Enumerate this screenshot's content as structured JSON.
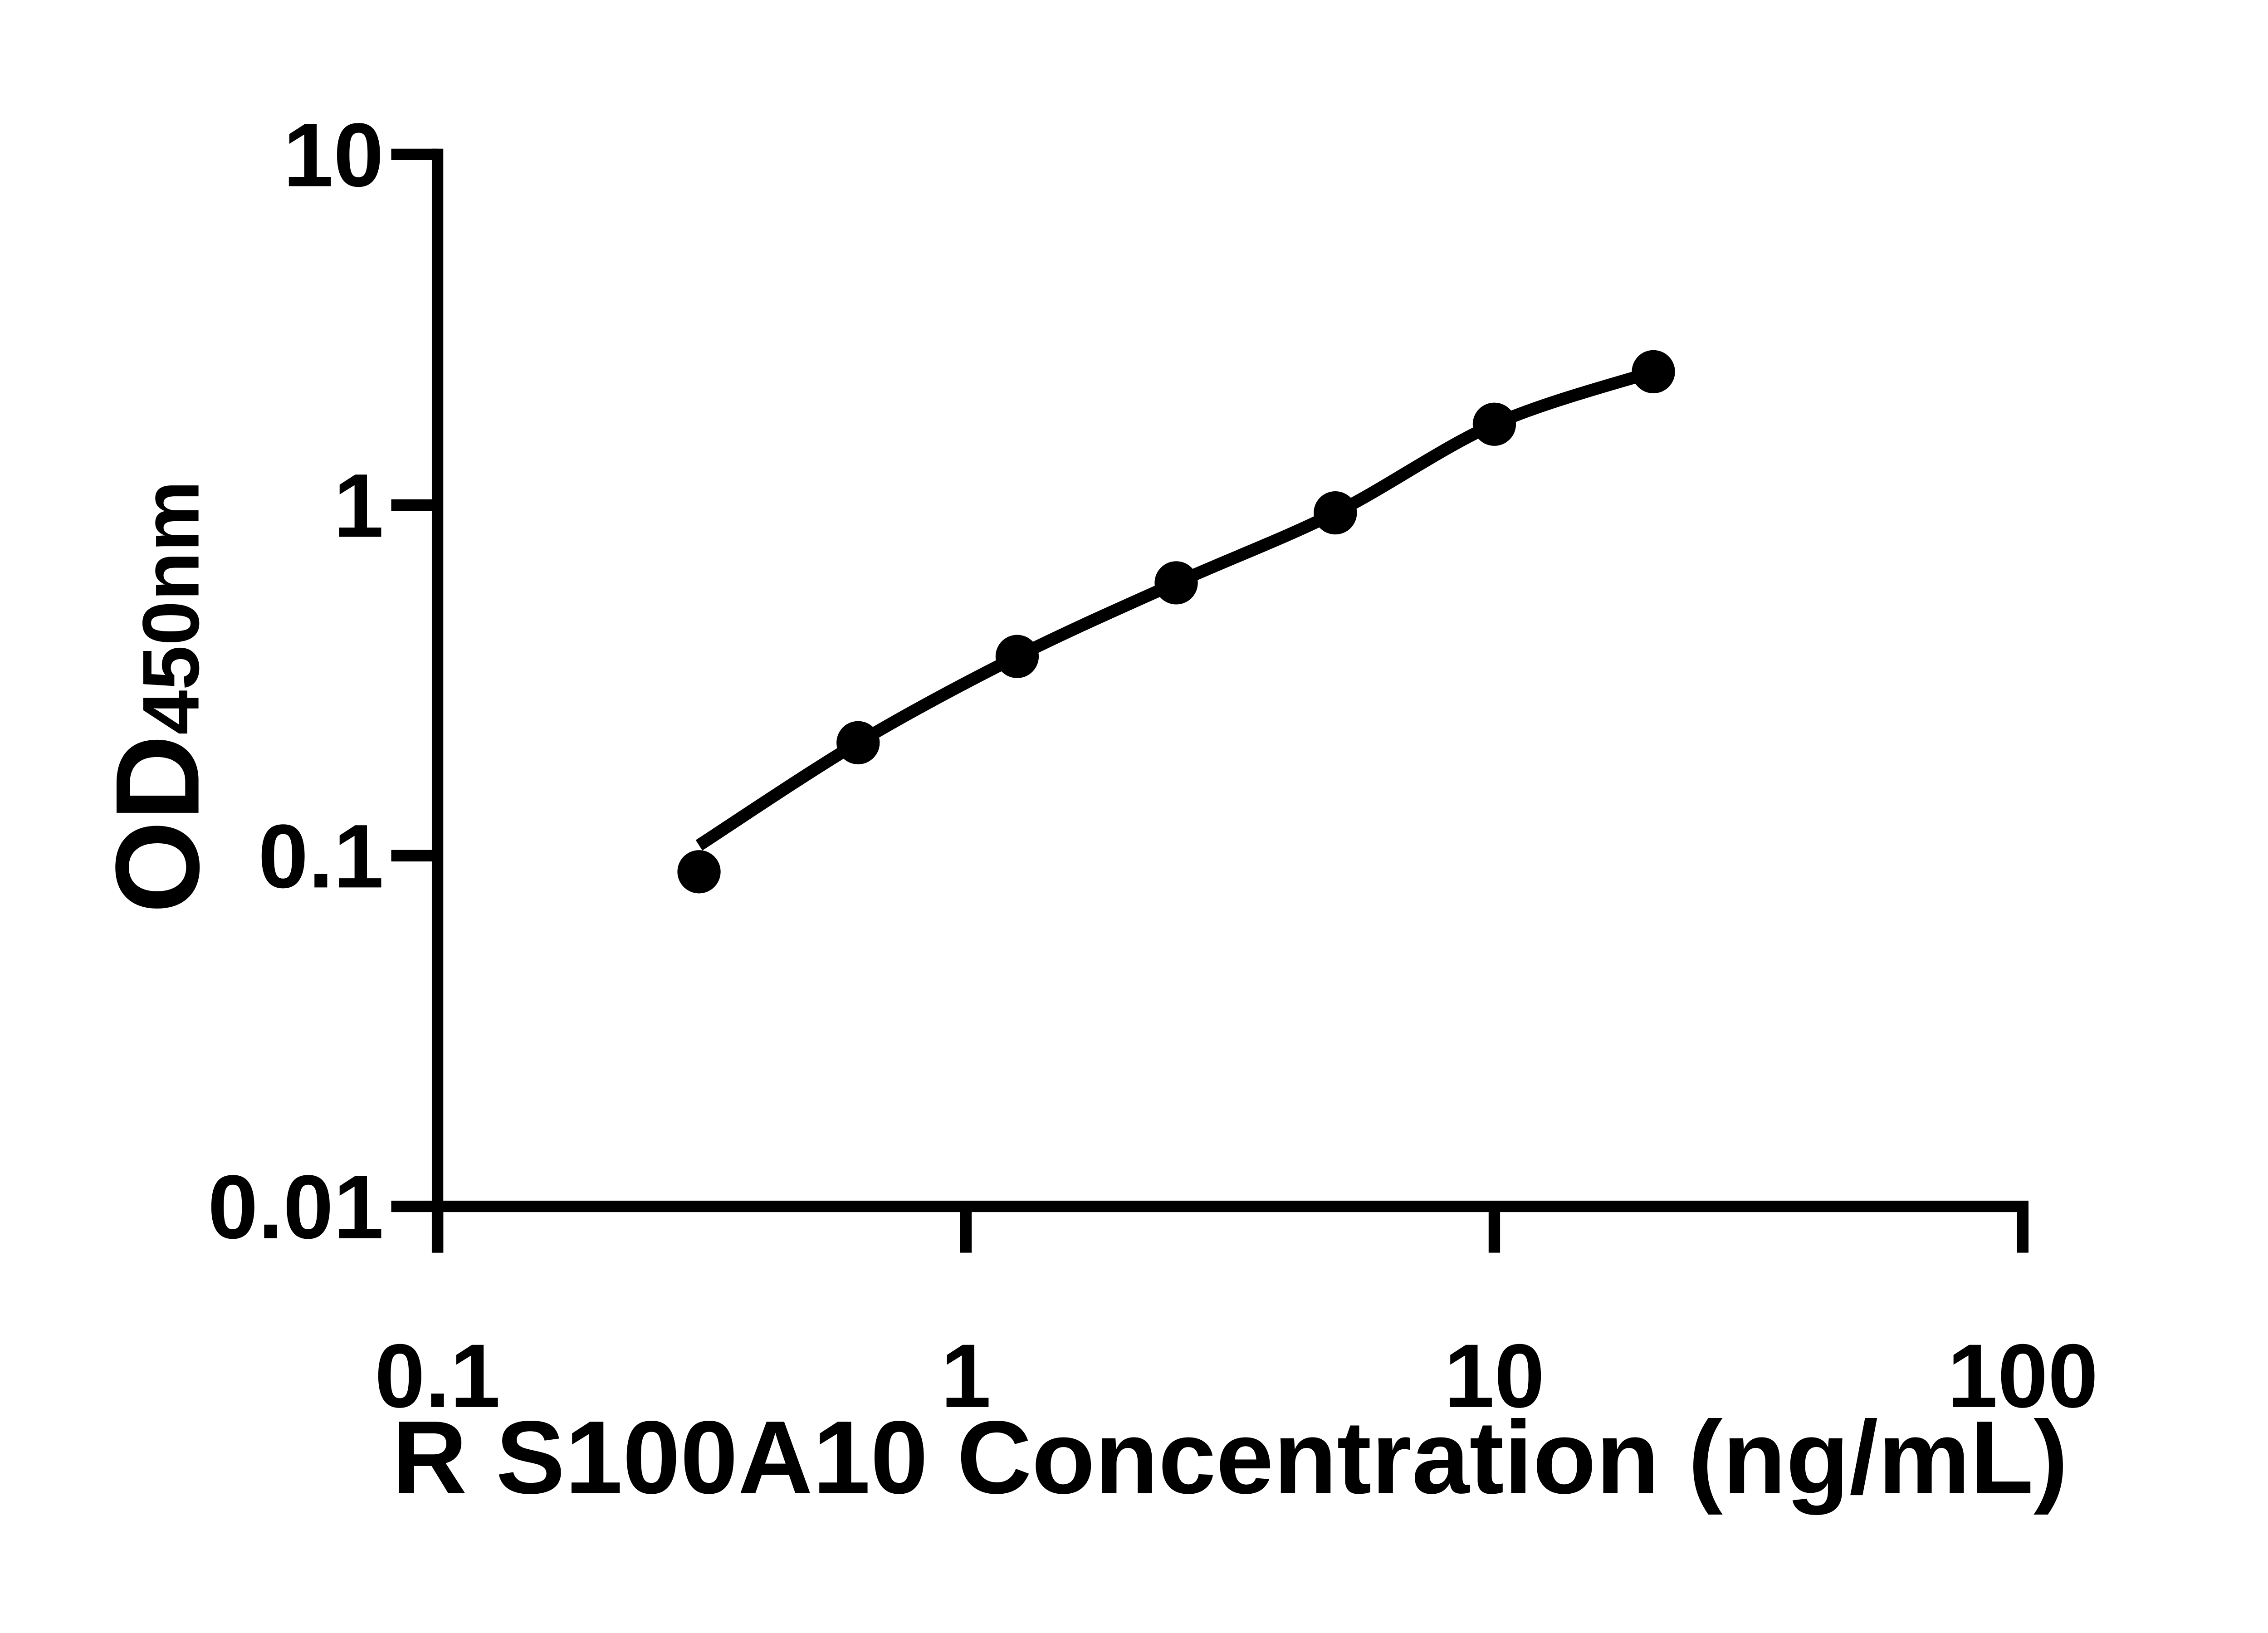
{
  "page": {
    "background_color": "#ffffff"
  },
  "chart_data": {
    "type": "scatter",
    "title": "",
    "xlabel": "R S100A10 Concentration (ng/mL)",
    "ylabel": "OD450nm",
    "ylabel_main": "OD",
    "ylabel_sub": "450nm",
    "x_scale": "log",
    "y_scale": "log",
    "xlim": [
      0.1,
      100
    ],
    "ylim": [
      0.01,
      10
    ],
    "grid": false,
    "legend": "none",
    "axis_color": "#000000",
    "x_ticks": [
      {
        "value": 0.1,
        "label": "0.1"
      },
      {
        "value": 1,
        "label": "1"
      },
      {
        "value": 10,
        "label": "10"
      },
      {
        "value": 100,
        "label": "100"
      }
    ],
    "y_ticks": [
      {
        "value": 10,
        "label": "10"
      },
      {
        "value": 1,
        "label": "1"
      },
      {
        "value": 0.1,
        "label": "0.1"
      },
      {
        "value": 0.01,
        "label": "0.01"
      }
    ],
    "series": [
      {
        "marker": "filled-circle",
        "color": "#000000",
        "line": "smooth-fit-curve",
        "points": [
          {
            "x": 0.3125,
            "y": 0.09
          },
          {
            "x": 0.625,
            "y": 0.21
          },
          {
            "x": 1.25,
            "y": 0.37
          },
          {
            "x": 2.5,
            "y": 0.6
          },
          {
            "x": 5,
            "y": 0.95
          },
          {
            "x": 10,
            "y": 1.7
          },
          {
            "x": 20,
            "y": 2.4
          }
        ]
      }
    ]
  }
}
